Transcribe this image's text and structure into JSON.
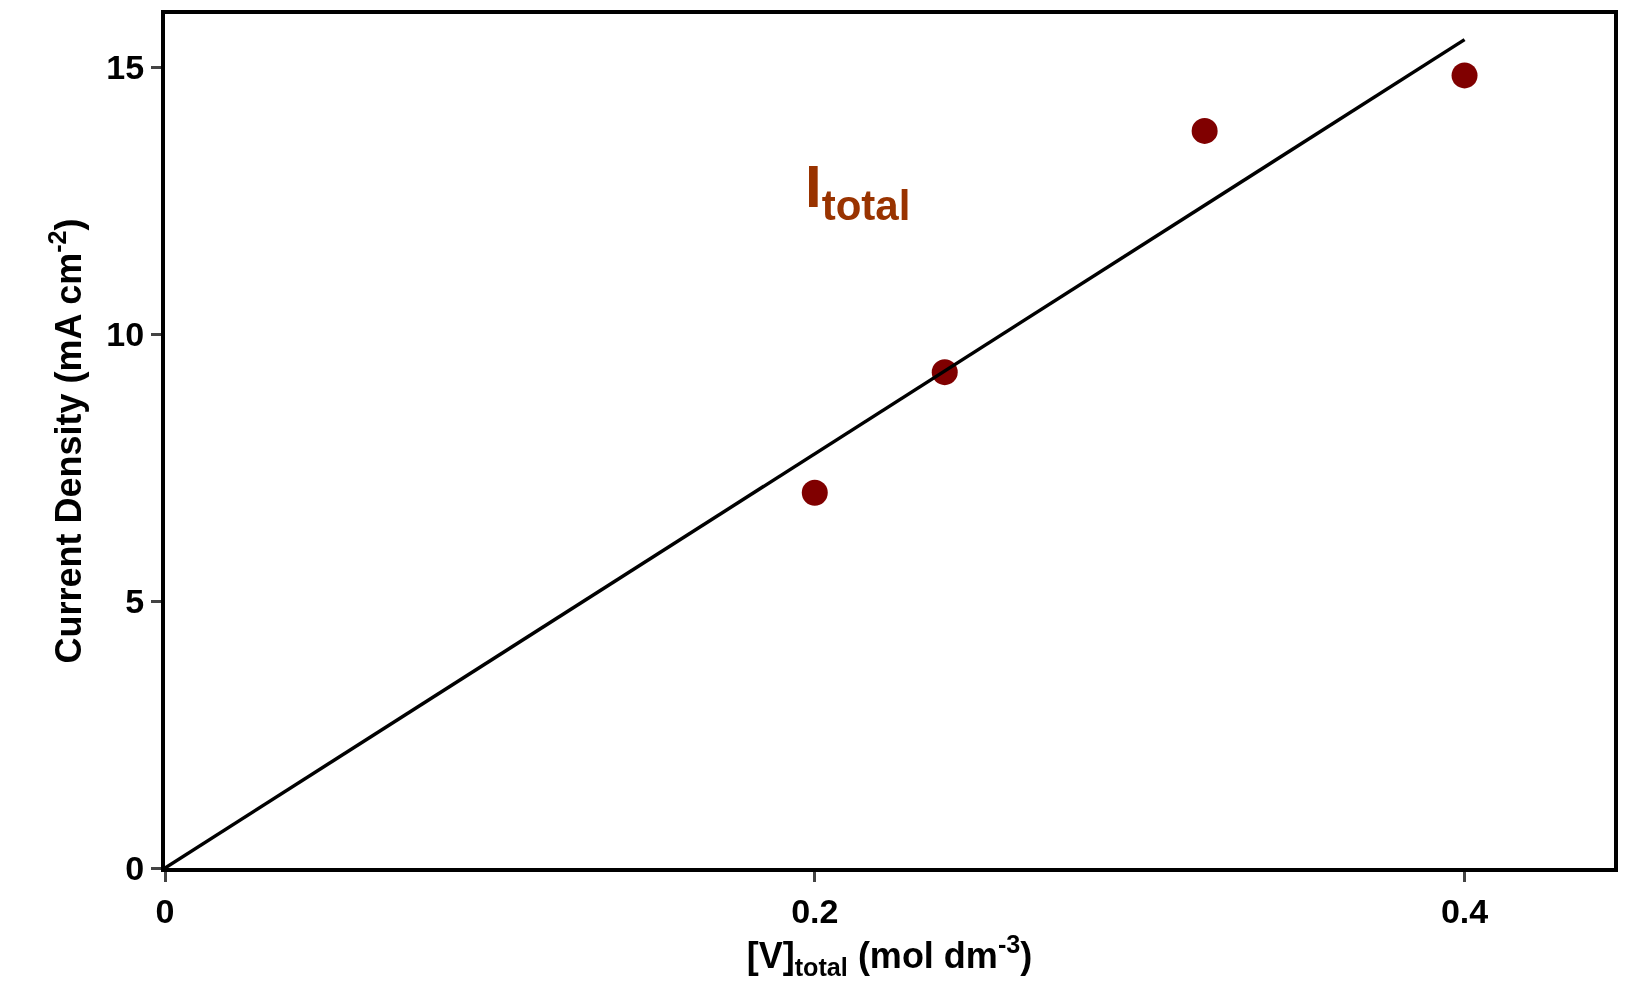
{
  "chart_data": {
    "type": "scatter",
    "xlabel": "[V]$_{total}$ (mol dm$^{-3}$)",
    "ylabel": "Current Density (mA cm$^{-2}$)",
    "series": [
      {
        "color": "#800000",
        "x": [
          0.2,
          0.24,
          0.32,
          0.4
        ],
        "values": [
          7.03,
          9.29,
          13.81,
          14.85
        ]
      },
      {
        "type": "line",
        "color": "#000000",
        "x": [
          0,
          0.4
        ],
        "values": [
          0,
          15.52
        ],
        "line_style": "solid",
        "marker": "none"
      }
    ],
    "annotations": [
      "I$_{total}$"
    ],
    "marker": "circle",
    "xlim": [
      0,
      0.446
    ],
    "xticks": [
      0,
      0.2,
      0.4
    ],
    "ylim": [
      0,
      16
    ],
    "yticks": [
      0,
      5,
      10,
      15
    ],
    "legend": false
  }
}
